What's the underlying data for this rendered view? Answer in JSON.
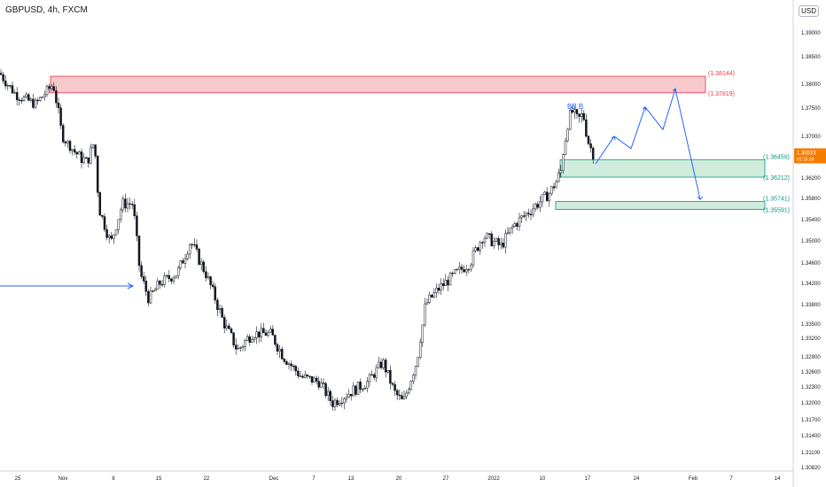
{
  "header": {
    "title": "GBPUSD, 4h, FXCM",
    "currency": "USD"
  },
  "chart_data": {
    "type": "candlestick",
    "symbol": "GBPUSD",
    "timeframe": "4h",
    "source": "FXCM",
    "y_ticks": [
      "1.39000",
      "1.38500",
      "1.38000",
      "1.37500",
      "1.37000",
      "1.36500",
      "1.36200",
      "1.35800",
      "1.35400",
      "1.35000",
      "1.34600",
      "1.34200",
      "1.33800",
      "1.33500",
      "1.33200",
      "1.32900",
      "1.32600",
      "1.32300",
      "1.32000",
      "1.31700",
      "1.31400",
      "1.31100",
      "1.30820"
    ],
    "x_ticks": [
      "25",
      "Nov",
      "8",
      "15",
      "22",
      "Dec",
      "7",
      "13",
      "20",
      "27",
      "2022",
      "10",
      "17",
      "24",
      "Feb",
      "7",
      "14"
    ],
    "last_price": "1.36533",
    "countdown": "01:15:24",
    "path": [
      [
        0,
        1.382
      ],
      [
        18,
        1.3778
      ],
      [
        40,
        1.3758
      ],
      [
        60,
        1.38
      ],
      [
        70,
        1.37
      ],
      [
        85,
        1.366
      ],
      [
        98,
        1.364
      ],
      [
        106,
        1.3685
      ],
      [
        112,
        1.356
      ],
      [
        125,
        1.3495
      ],
      [
        138,
        1.357
      ],
      [
        150,
        1.357
      ],
      [
        158,
        1.344
      ],
      [
        168,
        1.339
      ],
      [
        180,
        1.342
      ],
      [
        200,
        1.344
      ],
      [
        215,
        1.35
      ],
      [
        232,
        1.344
      ],
      [
        250,
        1.336
      ],
      [
        268,
        1.33
      ],
      [
        285,
        1.333
      ],
      [
        305,
        1.333
      ],
      [
        320,
        1.329
      ],
      [
        340,
        1.325
      ],
      [
        360,
        1.324
      ],
      [
        375,
        1.32
      ],
      [
        395,
        1.322
      ],
      [
        415,
        1.324
      ],
      [
        432,
        1.328
      ],
      [
        445,
        1.322
      ],
      [
        455,
        1.32
      ],
      [
        470,
        1.328
      ],
      [
        480,
        1.338
      ],
      [
        495,
        1.341
      ],
      [
        515,
        1.344
      ],
      [
        530,
        1.346
      ],
      [
        545,
        1.351
      ],
      [
        565,
        1.349
      ],
      [
        580,
        1.353
      ],
      [
        600,
        1.356
      ],
      [
        620,
        1.359
      ],
      [
        633,
        1.363
      ],
      [
        640,
        1.372
      ],
      [
        645,
        1.3745
      ],
      [
        652,
        1.3728
      ],
      [
        658,
        1.374
      ],
      [
        664,
        1.3685
      ],
      [
        670,
        1.3653
      ]
    ],
    "zones": [
      {
        "name": "supply",
        "top": 1.38144,
        "bottom": 1.37819,
        "top_label": "(1.38144)",
        "bottom_label": "(1.37819)",
        "color": "#f23645"
      },
      {
        "name": "demand-1",
        "top": 1.36459,
        "bottom": 1.36212,
        "top_label": "(1.36459)",
        "bottom_label": "(1.36212)",
        "color": "#089981"
      },
      {
        "name": "demand-2",
        "top": 1.35741,
        "bottom": 1.35591,
        "top_label": "(1.35741)",
        "bottom_label": "(1.35591)",
        "color": "#089981"
      }
    ],
    "projection": [
      [
        672,
        1.364
      ],
      [
        693,
        1.37
      ],
      [
        712,
        1.367
      ],
      [
        728,
        1.3752
      ],
      [
        748,
        1.3712
      ],
      [
        762,
        1.379
      ],
      [
        790,
        1.3578
      ]
    ],
    "arrow_line": [
      [
        0,
        1.3415
      ],
      [
        150,
        1.3415
      ]
    ],
    "pattern_label": "BB B",
    "colors": {
      "up": "#26a69a",
      "down": "#ef5350",
      "wick": "#131722",
      "projection": "#2962ff",
      "supply_fill": "#f7c9cd",
      "demand_fill": "#cfecdc",
      "price_tag": "#f57c00"
    }
  }
}
